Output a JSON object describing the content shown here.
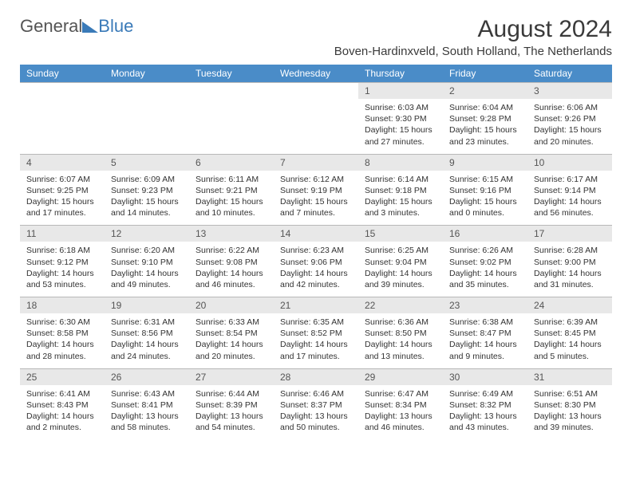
{
  "logo": {
    "part1": "General",
    "part2": "Blue"
  },
  "title": "August 2024",
  "location": "Boven-Hardinxveld, South Holland, The Netherlands",
  "day_headers": [
    "Sunday",
    "Monday",
    "Tuesday",
    "Wednesday",
    "Thursday",
    "Friday",
    "Saturday"
  ],
  "weeks": [
    {
      "nums": [
        "",
        "",
        "",
        "",
        "1",
        "2",
        "3"
      ],
      "cells": [
        "",
        "",
        "",
        "",
        "Sunrise: 6:03 AM\nSunset: 9:30 PM\nDaylight: 15 hours and 27 minutes.",
        "Sunrise: 6:04 AM\nSunset: 9:28 PM\nDaylight: 15 hours and 23 minutes.",
        "Sunrise: 6:06 AM\nSunset: 9:26 PM\nDaylight: 15 hours and 20 minutes."
      ]
    },
    {
      "nums": [
        "4",
        "5",
        "6",
        "7",
        "8",
        "9",
        "10"
      ],
      "cells": [
        "Sunrise: 6:07 AM\nSunset: 9:25 PM\nDaylight: 15 hours and 17 minutes.",
        "Sunrise: 6:09 AM\nSunset: 9:23 PM\nDaylight: 15 hours and 14 minutes.",
        "Sunrise: 6:11 AM\nSunset: 9:21 PM\nDaylight: 15 hours and 10 minutes.",
        "Sunrise: 6:12 AM\nSunset: 9:19 PM\nDaylight: 15 hours and 7 minutes.",
        "Sunrise: 6:14 AM\nSunset: 9:18 PM\nDaylight: 15 hours and 3 minutes.",
        "Sunrise: 6:15 AM\nSunset: 9:16 PM\nDaylight: 15 hours and 0 minutes.",
        "Sunrise: 6:17 AM\nSunset: 9:14 PM\nDaylight: 14 hours and 56 minutes."
      ]
    },
    {
      "nums": [
        "11",
        "12",
        "13",
        "14",
        "15",
        "16",
        "17"
      ],
      "cells": [
        "Sunrise: 6:18 AM\nSunset: 9:12 PM\nDaylight: 14 hours and 53 minutes.",
        "Sunrise: 6:20 AM\nSunset: 9:10 PM\nDaylight: 14 hours and 49 minutes.",
        "Sunrise: 6:22 AM\nSunset: 9:08 PM\nDaylight: 14 hours and 46 minutes.",
        "Sunrise: 6:23 AM\nSunset: 9:06 PM\nDaylight: 14 hours and 42 minutes.",
        "Sunrise: 6:25 AM\nSunset: 9:04 PM\nDaylight: 14 hours and 39 minutes.",
        "Sunrise: 6:26 AM\nSunset: 9:02 PM\nDaylight: 14 hours and 35 minutes.",
        "Sunrise: 6:28 AM\nSunset: 9:00 PM\nDaylight: 14 hours and 31 minutes."
      ]
    },
    {
      "nums": [
        "18",
        "19",
        "20",
        "21",
        "22",
        "23",
        "24"
      ],
      "cells": [
        "Sunrise: 6:30 AM\nSunset: 8:58 PM\nDaylight: 14 hours and 28 minutes.",
        "Sunrise: 6:31 AM\nSunset: 8:56 PM\nDaylight: 14 hours and 24 minutes.",
        "Sunrise: 6:33 AM\nSunset: 8:54 PM\nDaylight: 14 hours and 20 minutes.",
        "Sunrise: 6:35 AM\nSunset: 8:52 PM\nDaylight: 14 hours and 17 minutes.",
        "Sunrise: 6:36 AM\nSunset: 8:50 PM\nDaylight: 14 hours and 13 minutes.",
        "Sunrise: 6:38 AM\nSunset: 8:47 PM\nDaylight: 14 hours and 9 minutes.",
        "Sunrise: 6:39 AM\nSunset: 8:45 PM\nDaylight: 14 hours and 5 minutes."
      ]
    },
    {
      "nums": [
        "25",
        "26",
        "27",
        "28",
        "29",
        "30",
        "31"
      ],
      "cells": [
        "Sunrise: 6:41 AM\nSunset: 8:43 PM\nDaylight: 14 hours and 2 minutes.",
        "Sunrise: 6:43 AM\nSunset: 8:41 PM\nDaylight: 13 hours and 58 minutes.",
        "Sunrise: 6:44 AM\nSunset: 8:39 PM\nDaylight: 13 hours and 54 minutes.",
        "Sunrise: 6:46 AM\nSunset: 8:37 PM\nDaylight: 13 hours and 50 minutes.",
        "Sunrise: 6:47 AM\nSunset: 8:34 PM\nDaylight: 13 hours and 46 minutes.",
        "Sunrise: 6:49 AM\nSunset: 8:32 PM\nDaylight: 13 hours and 43 minutes.",
        "Sunrise: 6:51 AM\nSunset: 8:30 PM\nDaylight: 13 hours and 39 minutes."
      ]
    }
  ],
  "colors": {
    "header_bg": "#4a8cc8",
    "header_text": "#ffffff",
    "num_bg": "#e8e8e8",
    "logo_blue": "#3a7ab8"
  }
}
